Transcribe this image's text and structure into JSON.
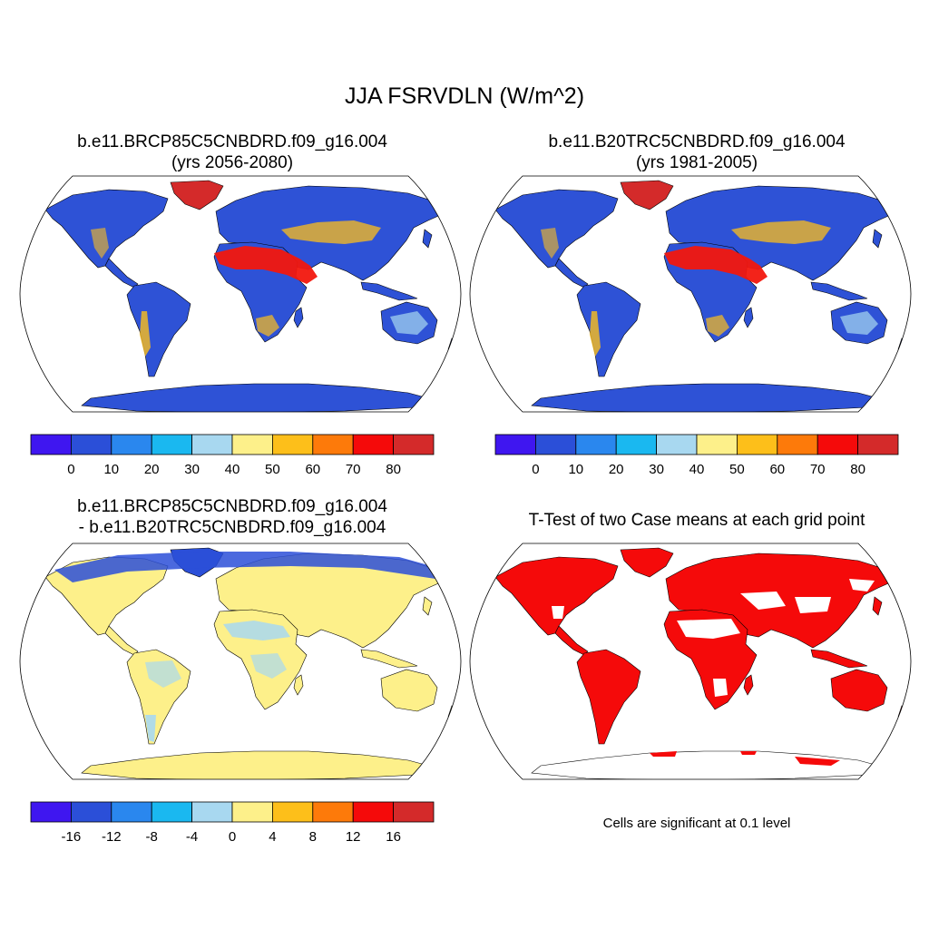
{
  "title": "JJA FSRVDLN (W/m^2)",
  "panels": {
    "case1": {
      "line1": "b.e11.BRCP85C5CNBDRD.f09_g16.004",
      "line2": "(yrs 2056-2080)"
    },
    "case2": {
      "line1": "b.e11.B20TRC5CNBDRD.f09_g16.004",
      "line2": "(yrs 1981-2005)"
    },
    "diff": {
      "line1": "b.e11.BRCP85C5CNBDRD.f09_g16.004",
      "line2": "- b.e11.B20TRC5CNBDRD.f09_g16.004"
    },
    "ttest": {
      "line1": "T-Test of two Case means at each grid point"
    }
  },
  "colorbars": {
    "abs": {
      "colors": [
        "#3f16f0",
        "#2b4fd8",
        "#2a87ee",
        "#1ab8f0",
        "#a8d8f0",
        "#fdf08a",
        "#fdbf1a",
        "#fd7a0a",
        "#f50a0a",
        "#d42a2a"
      ],
      "labels": [
        "0",
        "10",
        "20",
        "30",
        "40",
        "50",
        "60",
        "70",
        "80"
      ]
    },
    "diff": {
      "colors": [
        "#3f16f0",
        "#2b4fd8",
        "#2a87ee",
        "#1ab8f0",
        "#a8d8f0",
        "#fdf08a",
        "#fdbf1a",
        "#fd7a0a",
        "#f50a0a",
        "#d42a2a"
      ],
      "labels": [
        "-16",
        "-12",
        "-8",
        "-4",
        "0",
        "4",
        "8",
        "12",
        "16"
      ]
    }
  },
  "map_fill": {
    "case_land": "#2e52d6",
    "case_desert": "#f2170e",
    "case_antarctica": "#2e52d6",
    "greenland": "#d42a2a",
    "diff_land": "#fdf08a",
    "diff_cool": "#a8d8f0",
    "diff_arctic": "#2b4fd8",
    "signif": "#f50a0a"
  },
  "significance_note": "Cells are significant at 0.1 level"
}
